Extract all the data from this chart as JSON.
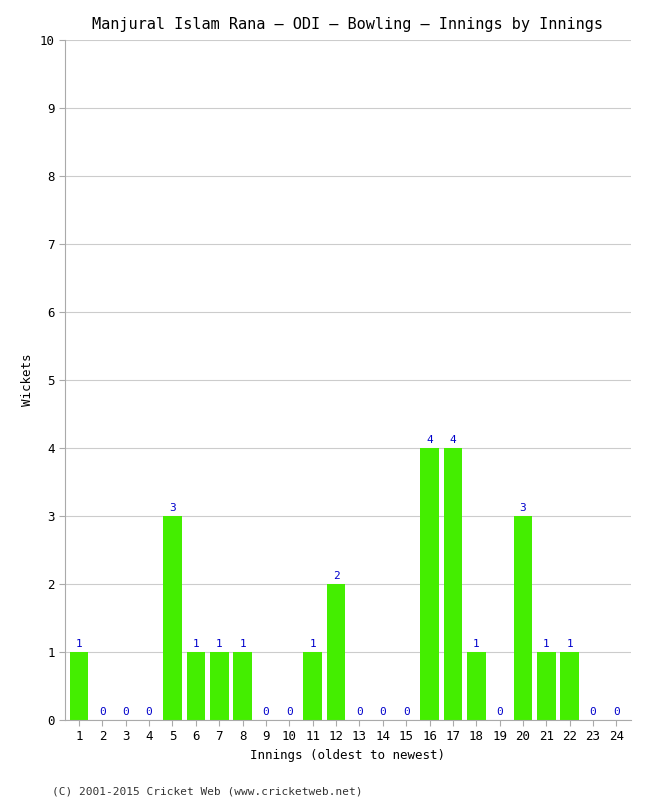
{
  "title": "Manjural Islam Rana – ODI – Bowling – Innings by Innings",
  "xlabel": "Innings (oldest to newest)",
  "ylabel": "Wickets",
  "categories": [
    1,
    2,
    3,
    4,
    5,
    6,
    7,
    8,
    9,
    10,
    11,
    12,
    13,
    14,
    15,
    16,
    17,
    18,
    19,
    20,
    21,
    22,
    23,
    24
  ],
  "values": [
    1,
    0,
    0,
    0,
    3,
    1,
    1,
    1,
    0,
    0,
    1,
    2,
    0,
    0,
    0,
    4,
    4,
    1,
    0,
    3,
    1,
    1,
    0,
    0
  ],
  "bar_color": "#44ee00",
  "label_color": "#0000cc",
  "background_color": "#ffffff",
  "grid_color": "#cccccc",
  "ylim": [
    0,
    10
  ],
  "yticks": [
    0,
    1,
    2,
    3,
    4,
    5,
    6,
    7,
    8,
    9,
    10
  ],
  "title_fontsize": 11,
  "axis_label_fontsize": 9,
  "tick_fontsize": 9,
  "annotation_fontsize": 8,
  "footer": "(C) 2001-2015 Cricket Web (www.cricketweb.net)",
  "footer_fontsize": 8
}
